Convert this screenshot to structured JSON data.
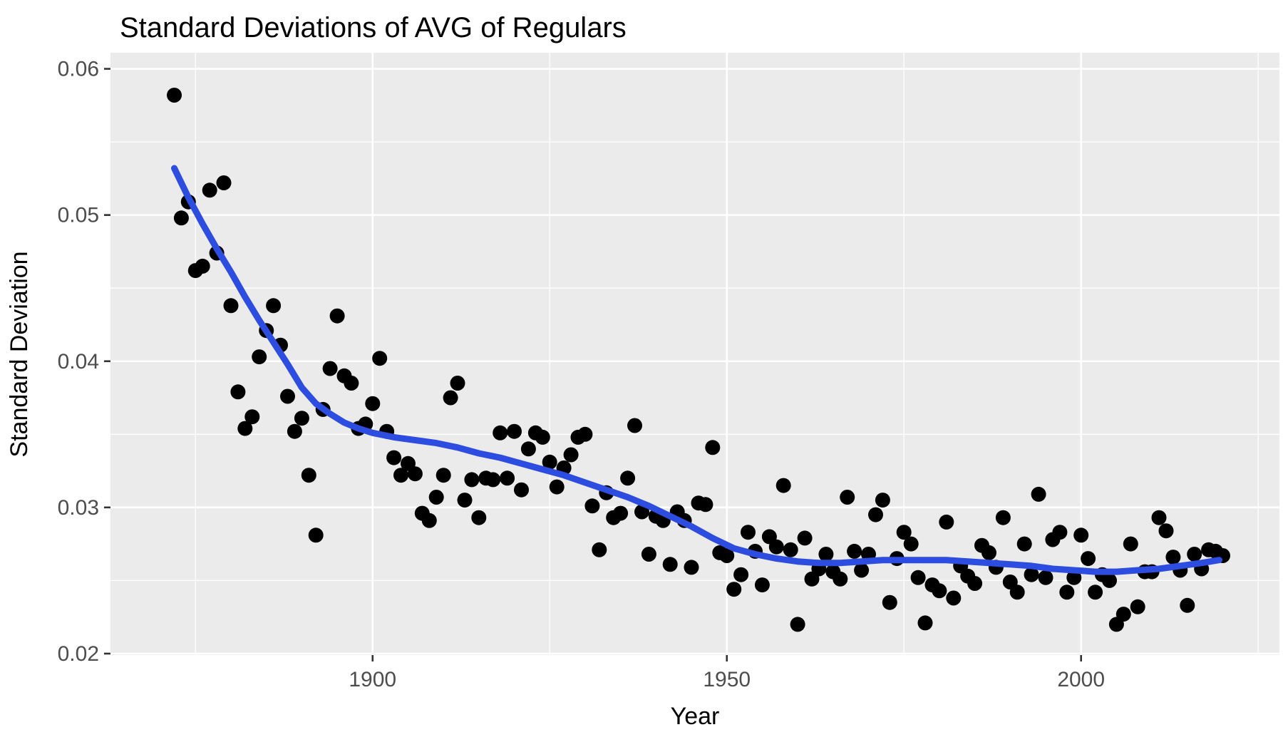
{
  "chart_data": {
    "type": "scatter",
    "title": "Standard Deviations of AVG of Regulars",
    "xlabel": "Year",
    "ylabel": "Standard Deviation",
    "xlim": [
      1863,
      2028
    ],
    "ylim": [
      0.0199,
      0.0611
    ],
    "x_major_ticks": [
      1900,
      1950,
      2000
    ],
    "x_tick_labels": [
      "1900",
      "1950",
      "2000"
    ],
    "x_minor_gridlines": [
      1875,
      1925,
      1975,
      2025
    ],
    "y_major_ticks": [
      0.02,
      0.03,
      0.04,
      0.05,
      0.06
    ],
    "y_tick_labels": [
      "0.02",
      "0.03",
      "0.04",
      "0.05",
      "0.06"
    ],
    "y_minor_gridlines": [
      0.025,
      0.035,
      0.045,
      0.055
    ],
    "grid": "white major+minor gridlines on grey panel",
    "legend": "none",
    "style": {
      "panel_bg": "#ebebeb",
      "grid_color": "#ffffff",
      "point_color": "#000000",
      "point_radius": 10.5,
      "smooth_color": "#2d4ce0",
      "smooth_width": 9,
      "tick_mark_color": "#333333",
      "tick_label_color": "#4d4d4d",
      "text_color": "#000000"
    },
    "series": [
      {
        "name": "sd-of-avg-by-year",
        "type": "scatter",
        "points": [
          [
            1872,
            0.0582
          ],
          [
            1873,
            0.0498
          ],
          [
            1874,
            0.0509
          ],
          [
            1875,
            0.0462
          ],
          [
            1876,
            0.0465
          ],
          [
            1877,
            0.0517
          ],
          [
            1878,
            0.0474
          ],
          [
            1879,
            0.0522
          ],
          [
            1880,
            0.0438
          ],
          [
            1881,
            0.0379
          ],
          [
            1882,
            0.0354
          ],
          [
            1883,
            0.0362
          ],
          [
            1884,
            0.0403
          ],
          [
            1885,
            0.0421
          ],
          [
            1886,
            0.0438
          ],
          [
            1887,
            0.0411
          ],
          [
            1888,
            0.0376
          ],
          [
            1889,
            0.0352
          ],
          [
            1890,
            0.0361
          ],
          [
            1891,
            0.0322
          ],
          [
            1892,
            0.0281
          ],
          [
            1893,
            0.0367
          ],
          [
            1894,
            0.0395
          ],
          [
            1895,
            0.0431
          ],
          [
            1896,
            0.039
          ],
          [
            1897,
            0.0385
          ],
          [
            1898,
            0.0354
          ],
          [
            1899,
            0.0357
          ],
          [
            1900,
            0.0371
          ],
          [
            1901,
            0.0402
          ],
          [
            1902,
            0.0352
          ],
          [
            1903,
            0.0334
          ],
          [
            1904,
            0.0322
          ],
          [
            1905,
            0.033
          ],
          [
            1906,
            0.0323
          ],
          [
            1907,
            0.0296
          ],
          [
            1908,
            0.0291
          ],
          [
            1909,
            0.0307
          ],
          [
            1910,
            0.0322
          ],
          [
            1911,
            0.0375
          ],
          [
            1912,
            0.0385
          ],
          [
            1913,
            0.0305
          ],
          [
            1914,
            0.0319
          ],
          [
            1915,
            0.0293
          ],
          [
            1916,
            0.032
          ],
          [
            1917,
            0.0319
          ],
          [
            1918,
            0.0351
          ],
          [
            1919,
            0.032
          ],
          [
            1920,
            0.0352
          ],
          [
            1921,
            0.0312
          ],
          [
            1922,
            0.034
          ],
          [
            1923,
            0.0351
          ],
          [
            1924,
            0.0348
          ],
          [
            1925,
            0.0331
          ],
          [
            1926,
            0.0314
          ],
          [
            1927,
            0.0327
          ],
          [
            1928,
            0.0336
          ],
          [
            1929,
            0.0348
          ],
          [
            1930,
            0.035
          ],
          [
            1931,
            0.0301
          ],
          [
            1932,
            0.0271
          ],
          [
            1933,
            0.031
          ],
          [
            1934,
            0.0293
          ],
          [
            1935,
            0.0296
          ],
          [
            1936,
            0.032
          ],
          [
            1937,
            0.0356
          ],
          [
            1938,
            0.0297
          ],
          [
            1939,
            0.0268
          ],
          [
            1940,
            0.0294
          ],
          [
            1941,
            0.0291
          ],
          [
            1942,
            0.0261
          ],
          [
            1943,
            0.0297
          ],
          [
            1944,
            0.0291
          ],
          [
            1945,
            0.0259
          ],
          [
            1946,
            0.0303
          ],
          [
            1947,
            0.0302
          ],
          [
            1948,
            0.0341
          ],
          [
            1949,
            0.0269
          ],
          [
            1950,
            0.0267
          ],
          [
            1951,
            0.0244
          ],
          [
            1952,
            0.0254
          ],
          [
            1953,
            0.0283
          ],
          [
            1954,
            0.027
          ],
          [
            1955,
            0.0247
          ],
          [
            1956,
            0.028
          ],
          [
            1957,
            0.0273
          ],
          [
            1958,
            0.0315
          ],
          [
            1959,
            0.0271
          ],
          [
            1960,
            0.022
          ],
          [
            1961,
            0.0279
          ],
          [
            1962,
            0.0251
          ],
          [
            1963,
            0.0258
          ],
          [
            1964,
            0.0268
          ],
          [
            1965,
            0.0256
          ],
          [
            1966,
            0.0251
          ],
          [
            1967,
            0.0307
          ],
          [
            1968,
            0.027
          ],
          [
            1969,
            0.0257
          ],
          [
            1970,
            0.0268
          ],
          [
            1971,
            0.0295
          ],
          [
            1972,
            0.0305
          ],
          [
            1973,
            0.0235
          ],
          [
            1974,
            0.0265
          ],
          [
            1975,
            0.0283
          ],
          [
            1976,
            0.0275
          ],
          [
            1977,
            0.0252
          ],
          [
            1978,
            0.0221
          ],
          [
            1979,
            0.0247
          ],
          [
            1980,
            0.0243
          ],
          [
            1981,
            0.029
          ],
          [
            1982,
            0.0238
          ],
          [
            1983,
            0.026
          ],
          [
            1984,
            0.0253
          ],
          [
            1985,
            0.0248
          ],
          [
            1986,
            0.0274
          ],
          [
            1987,
            0.0269
          ],
          [
            1988,
            0.0259
          ],
          [
            1989,
            0.0293
          ],
          [
            1990,
            0.0249
          ],
          [
            1991,
            0.0242
          ],
          [
            1992,
            0.0275
          ],
          [
            1993,
            0.0254
          ],
          [
            1994,
            0.0309
          ],
          [
            1995,
            0.0252
          ],
          [
            1996,
            0.0278
          ],
          [
            1997,
            0.0283
          ],
          [
            1998,
            0.0242
          ],
          [
            1999,
            0.0252
          ],
          [
            2000,
            0.0281
          ],
          [
            2001,
            0.0265
          ],
          [
            2002,
            0.0242
          ],
          [
            2003,
            0.0254
          ],
          [
            2004,
            0.025
          ],
          [
            2005,
            0.022
          ],
          [
            2006,
            0.0227
          ],
          [
            2007,
            0.0275
          ],
          [
            2008,
            0.0232
          ],
          [
            2009,
            0.0256
          ],
          [
            2010,
            0.0256
          ],
          [
            2011,
            0.0293
          ],
          [
            2012,
            0.0284
          ],
          [
            2013,
            0.0266
          ],
          [
            2014,
            0.0257
          ],
          [
            2015,
            0.0233
          ],
          [
            2016,
            0.0268
          ],
          [
            2017,
            0.0258
          ],
          [
            2018,
            0.0271
          ],
          [
            2019,
            0.027
          ],
          [
            2020,
            0.0267
          ]
        ]
      },
      {
        "name": "loess-smooth",
        "type": "line",
        "points": [
          [
            1872,
            0.0532
          ],
          [
            1874,
            0.0512
          ],
          [
            1876,
            0.0494
          ],
          [
            1878,
            0.0477
          ],
          [
            1880,
            0.0461
          ],
          [
            1882,
            0.0444
          ],
          [
            1884,
            0.0428
          ],
          [
            1886,
            0.0413
          ],
          [
            1888,
            0.0398
          ],
          [
            1890,
            0.0382
          ],
          [
            1892,
            0.0371
          ],
          [
            1894,
            0.0364
          ],
          [
            1896,
            0.0358
          ],
          [
            1898,
            0.0354
          ],
          [
            1900,
            0.0351
          ],
          [
            1903,
            0.0348
          ],
          [
            1906,
            0.0346
          ],
          [
            1909,
            0.0344
          ],
          [
            1912,
            0.0341
          ],
          [
            1915,
            0.0337
          ],
          [
            1918,
            0.0334
          ],
          [
            1921,
            0.033
          ],
          [
            1924,
            0.0326
          ],
          [
            1927,
            0.0322
          ],
          [
            1930,
            0.0317
          ],
          [
            1933,
            0.0312
          ],
          [
            1936,
            0.0307
          ],
          [
            1939,
            0.0301
          ],
          [
            1942,
            0.0294
          ],
          [
            1945,
            0.0287
          ],
          [
            1948,
            0.0279
          ],
          [
            1951,
            0.0272
          ],
          [
            1954,
            0.0268
          ],
          [
            1957,
            0.0265
          ],
          [
            1960,
            0.0263
          ],
          [
            1963,
            0.0262
          ],
          [
            1966,
            0.0262
          ],
          [
            1969,
            0.0263
          ],
          [
            1972,
            0.0264
          ],
          [
            1975,
            0.0264
          ],
          [
            1978,
            0.0264
          ],
          [
            1981,
            0.0264
          ],
          [
            1984,
            0.0263
          ],
          [
            1987,
            0.0262
          ],
          [
            1990,
            0.0261
          ],
          [
            1993,
            0.026
          ],
          [
            1996,
            0.0258
          ],
          [
            1999,
            0.0257
          ],
          [
            2002,
            0.0256
          ],
          [
            2005,
            0.0256
          ],
          [
            2008,
            0.0257
          ],
          [
            2011,
            0.0258
          ],
          [
            2014,
            0.026
          ],
          [
            2017,
            0.0262
          ],
          [
            2019.5,
            0.0264
          ]
        ]
      }
    ]
  }
}
